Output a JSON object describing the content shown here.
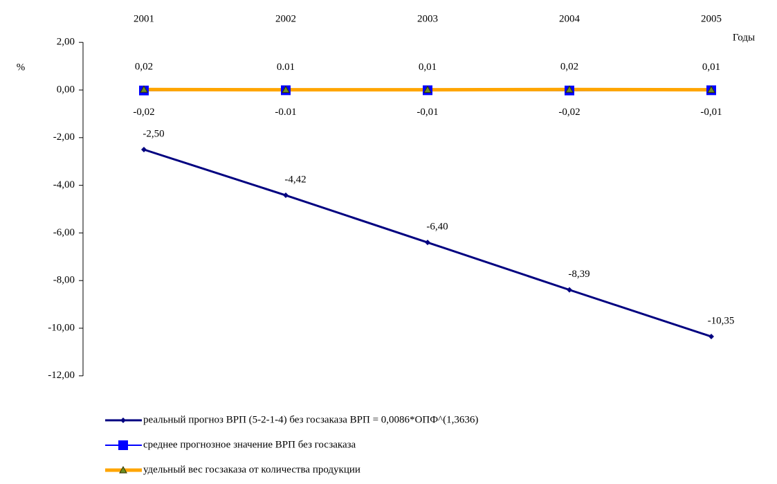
{
  "chart_data": {
    "type": "line",
    "categories": [
      "2001",
      "2002",
      "2003",
      "2004",
      "2005"
    ],
    "x_label": "Годы",
    "y_label": "%",
    "ylim": [
      -12,
      2
    ],
    "yticks": [
      {
        "value": 2,
        "label": "2,00"
      },
      {
        "value": 0,
        "label": "0,00"
      },
      {
        "value": -2,
        "label": "-2,00"
      },
      {
        "value": -4,
        "label": "-4,00"
      },
      {
        "value": -6,
        "label": "-6,00"
      },
      {
        "value": -8,
        "label": "-8,00"
      },
      {
        "value": -10,
        "label": "-10,00"
      },
      {
        "value": -12,
        "label": "-12,00"
      }
    ],
    "series": [
      {
        "name": "реальный прогноз ВРП (5-2-1-4) без госзаказа ВРП = 0,0086*ОПФ^(1,3636)",
        "color": "#000080",
        "marker": "diamond",
        "values": [
          -2.5,
          -4.42,
          -6.4,
          -8.39,
          -10.35
        ],
        "value_labels": [
          "-2,50",
          "-4,42",
          "-6,40",
          "-8,39",
          "-10,35"
        ]
      },
      {
        "name": "среднее прогнозное значение ВРП без госзаказа",
        "color": "#0000ff",
        "marker": "square",
        "values": [
          -0.02,
          -0.01,
          -0.01,
          -0.02,
          -0.01
        ],
        "value_labels": [
          "-0,02",
          "-0.01",
          "-0,01",
          "-0,02",
          "-0,01"
        ]
      },
      {
        "name": "удельный вес госзаказа от количества продукции",
        "color": "#ffa500",
        "marker": "triangle",
        "values": [
          0.02,
          0.01,
          0.01,
          0.02,
          0.01
        ],
        "value_labels": [
          "0,02",
          "0.01",
          "0,01",
          "0,02",
          "0,01"
        ]
      }
    ]
  }
}
